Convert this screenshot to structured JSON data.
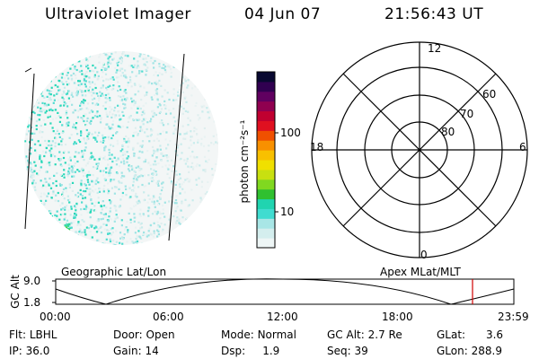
{
  "header": {
    "instrument": "Ultraviolet Imager",
    "date": "04 Jun 07",
    "time": "21:56:43 UT"
  },
  "colorbar": {
    "unit_label": "photon cm⁻²s⁻¹",
    "tick_100": "100",
    "tick_10": "10",
    "colors": [
      "#eef6f6",
      "#d4eeee",
      "#a8e6e6",
      "#40dcd0",
      "#20d4b0",
      "#30c030",
      "#80d820",
      "#c8e010",
      "#f0e000",
      "#f8c000",
      "#f89000",
      "#f05000",
      "#e01020",
      "#c00030",
      "#900050",
      "#600060",
      "#300050",
      "#080830"
    ]
  },
  "polar_plot": {
    "mlt_top": "12",
    "mlt_left": "18",
    "mlt_right": "6",
    "mlt_bottom": "0",
    "lat_60": "60",
    "lat_70": "70",
    "lat_80": "80"
  },
  "timeline": {
    "left_label": "Geographic Lat/Lon",
    "right_label": "Apex MLat/MLT",
    "yaxis_title": "GC Alt",
    "y_top": "9.0",
    "y_bottom": "1.8",
    "ticks": [
      "00:00",
      "06:00",
      "12:00",
      "18:00",
      "23:59"
    ],
    "marker_color": "#d00000"
  },
  "info": {
    "flt_label": "Flt:",
    "flt_value": "LBHL",
    "ip_label": "IP:",
    "ip_value": "36.0",
    "door_label": "Door:",
    "door_value": "Open",
    "gain_label": "Gain:",
    "gain_value": "14",
    "mode_label": "Mode:",
    "mode_value": "Normal",
    "dsp_label": "Dsp:",
    "dsp_value": "1.9",
    "gcalt_label": "GC Alt:",
    "gcalt_value": "2.7 Re",
    "seq_label": "Seq:",
    "seq_value": "39",
    "glat_label": "GLat:",
    "glat_value": "3.6",
    "glon_label": "GLon:",
    "glon_value": "288.9"
  }
}
